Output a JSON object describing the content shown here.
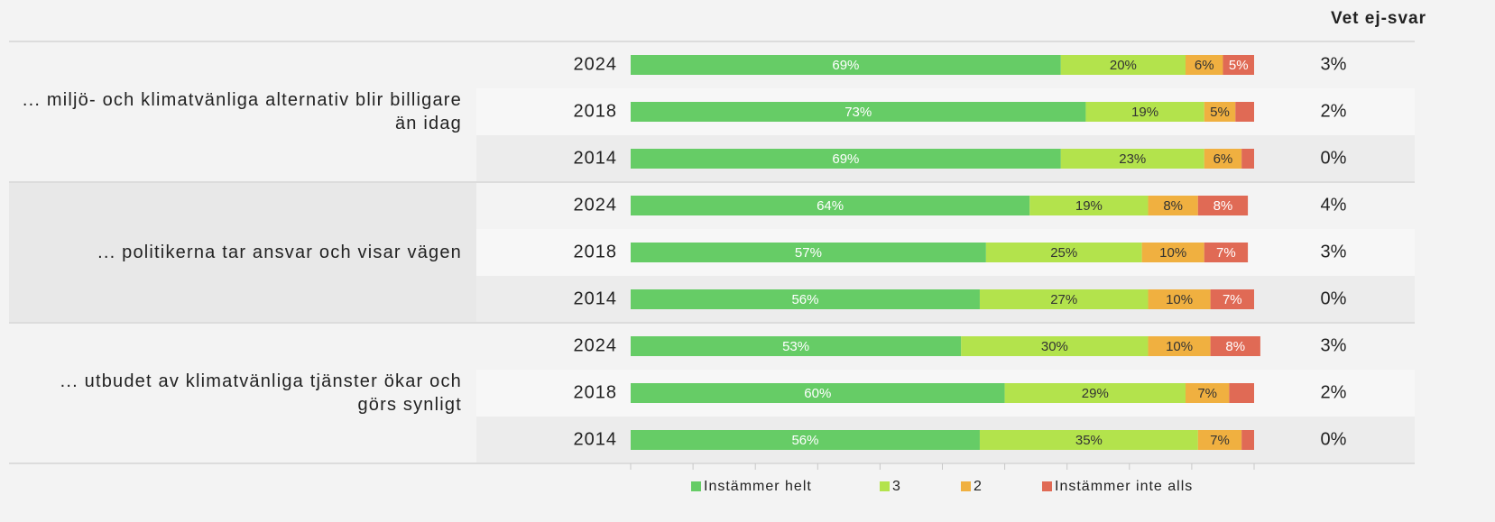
{
  "chart_data": {
    "type": "stacked-bar",
    "dont_know_title": "Vet ej-svar",
    "groups": [
      {
        "label": "... miljö- och klimatvänliga alternativ blir billigare än idag",
        "years": [
          "2024",
          "2018",
          "2014"
        ]
      },
      {
        "label": "... politikerna tar ansvar och visar vägen",
        "years": [
          "2024",
          "2018",
          "2014"
        ]
      },
      {
        "label": "... utbudet av klimatvänliga tjänster ökar och görs synligt",
        "years": [
          "2024",
          "2018",
          "2014"
        ]
      }
    ],
    "series": [
      {
        "name": "Instämmer helt",
        "color": "#66cc66",
        "label_color": "#ffffff",
        "values": [
          69,
          73,
          69,
          64,
          57,
          56,
          53,
          60,
          56
        ],
        "value_labels": [
          "69%",
          "73%",
          "69%",
          "64%",
          "57%",
          "56%",
          "53%",
          "60%",
          "56%"
        ]
      },
      {
        "name": "3",
        "color": "#b3e34c",
        "label_color": "#333333",
        "values": [
          20,
          19,
          23,
          19,
          25,
          27,
          30,
          29,
          35
        ],
        "value_labels": [
          "20%",
          "19%",
          "23%",
          "19%",
          "25%",
          "27%",
          "30%",
          "29%",
          "35%"
        ]
      },
      {
        "name": "2",
        "color": "#f0b040",
        "label_color": "#333333",
        "values": [
          6,
          5,
          6,
          8,
          10,
          10,
          10,
          7,
          7
        ],
        "value_labels": [
          "6%",
          "5%",
          "6%",
          "8%",
          "10%",
          "10%",
          "10%",
          "7%",
          "7%"
        ]
      },
      {
        "name": "Instämmer inte alls",
        "color": "#e06a55",
        "label_color": "#ffffff",
        "values": [
          5,
          3,
          2,
          8,
          7,
          7,
          8,
          4,
          2
        ],
        "value_labels": [
          "5%",
          null,
          null,
          "8%",
          "7%",
          "7%",
          "8%",
          null,
          null
        ]
      }
    ],
    "dont_know": {
      "values": [
        3,
        2,
        0,
        4,
        3,
        0,
        3,
        2,
        0
      ],
      "value_labels": [
        "3%",
        "2%",
        "0%",
        "4%",
        "3%",
        "0%",
        "3%",
        "2%",
        "0%"
      ]
    },
    "xlim": [
      0,
      100
    ],
    "xticks": [
      0,
      10,
      20,
      30,
      40,
      50,
      60,
      70,
      80,
      90,
      100
    ]
  }
}
